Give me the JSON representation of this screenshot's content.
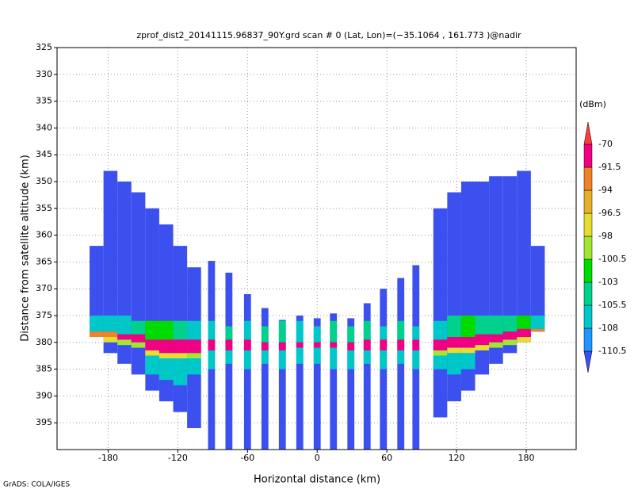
{
  "chart_data": {
    "type": "heatmap",
    "title": "zprof_dist2_20141115.96837_90Y.grd  scan # 0  (Lat, Lon)=(−35.1064 , 161.773 )@nadir",
    "x_label": "Horizontal distance (km)",
    "y_label": "Distance from satellite altitude (km)",
    "footer": "GrADS: COLA/IGES",
    "xlim": [
      -224,
      223
    ],
    "ylim": [
      325,
      400
    ],
    "y_inverted": true,
    "xticks": [
      -180,
      -120,
      -60,
      0,
      60,
      120,
      180
    ],
    "yticks": [
      325,
      330,
      335,
      340,
      345,
      350,
      355,
      360,
      365,
      370,
      375,
      380,
      385,
      390,
      395
    ],
    "grid": true,
    "colorbar": {
      "unit": "(dBm)",
      "levels": [
        -110.5,
        -108,
        -105.5,
        -103,
        -100.5,
        -98,
        -96.5,
        -94,
        -91.5,
        -70
      ],
      "colors": [
        "#3c50f0",
        "#1e96ff",
        "#00c8c8",
        "#00d28c",
        "#00dc00",
        "#a0e632",
        "#e6dc32",
        "#e6af2d",
        "#f08228",
        "#f00082",
        "#fa3c3c"
      ]
    },
    "columns": [
      {
        "x": -190,
        "width": 12,
        "top": 362,
        "bottom": 379,
        "base": -112,
        "cells": [
          [
            375,
            378,
            -108
          ],
          [
            378,
            379,
            -93
          ]
        ]
      },
      {
        "x": -178,
        "width": 12,
        "top": 348,
        "bottom": 382,
        "base": -112,
        "cells": [
          [
            375,
            378,
            -106
          ],
          [
            378,
            379,
            -92
          ],
          [
            379,
            380,
            -98
          ]
        ]
      },
      {
        "x": -166,
        "width": 12,
        "top": 350,
        "bottom": 384,
        "base": -112,
        "cells": [
          [
            375,
            378.5,
            -106
          ],
          [
            378.5,
            379.5,
            -88
          ],
          [
            379.5,
            380.5,
            -99
          ]
        ]
      },
      {
        "x": -154,
        "width": 12,
        "top": 352,
        "bottom": 386,
        "base": -112,
        "cells": [
          [
            376,
            378.5,
            -104
          ],
          [
            378.5,
            380,
            -88
          ],
          [
            380,
            381,
            -100
          ]
        ]
      },
      {
        "x": -142,
        "width": 12,
        "top": 355,
        "bottom": 389,
        "base": -112,
        "cells": [
          [
            376,
            379.5,
            -101
          ],
          [
            379.5,
            381.5,
            -80
          ],
          [
            381.5,
            382.5,
            -98
          ],
          [
            382.5,
            386,
            -107
          ]
        ]
      },
      {
        "x": -130,
        "width": 12,
        "top": 358,
        "bottom": 391,
        "base": -112,
        "cells": [
          [
            376,
            379.5,
            -103
          ],
          [
            379.5,
            382,
            -80
          ],
          [
            382,
            383,
            -97
          ],
          [
            383,
            387,
            -106
          ]
        ]
      },
      {
        "x": -118,
        "width": 12,
        "top": 362,
        "bottom": 393,
        "base": -112,
        "cells": [
          [
            376,
            379.5,
            -104
          ],
          [
            379.5,
            382,
            -80
          ],
          [
            382,
            383,
            -98
          ],
          [
            383,
            388,
            -106
          ]
        ]
      },
      {
        "x": -106,
        "width": 12,
        "top": 366,
        "bottom": 396,
        "base": -112,
        "cells": [
          [
            376,
            379.5,
            -106
          ],
          [
            379.5,
            382,
            -80
          ],
          [
            382,
            383,
            -99
          ],
          [
            383,
            386,
            -107
          ]
        ]
      },
      {
        "x": -91,
        "width": 6,
        "top": 364.8,
        "bottom": 400,
        "base": -112,
        "cells": [
          [
            376,
            379.5,
            -106
          ],
          [
            379.5,
            381.5,
            -82
          ],
          [
            381.5,
            385,
            -107
          ]
        ]
      },
      {
        "x": -76,
        "width": 6,
        "top": 367,
        "bottom": 400,
        "base": -112,
        "cells": [
          [
            377,
            379.5,
            -105
          ],
          [
            379.5,
            381.5,
            -82
          ],
          [
            381.5,
            384,
            -106
          ]
        ]
      },
      {
        "x": -60,
        "width": 6,
        "top": 371,
        "bottom": 400,
        "base": -112,
        "cells": [
          [
            376,
            379.5,
            -106
          ],
          [
            379.5,
            381.5,
            -84
          ],
          [
            381.5,
            385,
            -107
          ]
        ]
      },
      {
        "x": -45,
        "width": 6,
        "top": 373.6,
        "bottom": 400,
        "base": -112,
        "cells": [
          [
            377,
            380,
            -105
          ],
          [
            380,
            381.5,
            -84
          ],
          [
            381.5,
            384,
            -106
          ]
        ]
      },
      {
        "x": -30,
        "width": 6,
        "top": 375.8,
        "bottom": 400,
        "base": -112,
        "cells": [
          [
            376,
            380,
            -104
          ],
          [
            380,
            381.5,
            -86
          ],
          [
            381.5,
            385,
            -106
          ]
        ]
      },
      {
        "x": -15,
        "width": 6,
        "top": 375,
        "bottom": 400,
        "base": -112,
        "cells": [
          [
            376,
            380,
            -106
          ],
          [
            380,
            381,
            -86
          ],
          [
            381,
            384,
            -107
          ]
        ]
      },
      {
        "x": 0,
        "width": 6,
        "top": 375.5,
        "bottom": 400,
        "base": -112,
        "cells": [
          [
            377,
            380,
            -106
          ],
          [
            380,
            381,
            -86
          ],
          [
            381,
            384,
            -107
          ]
        ]
      },
      {
        "x": 14,
        "width": 6,
        "top": 374.6,
        "bottom": 400,
        "base": -112,
        "cells": [
          [
            376,
            380,
            -105
          ],
          [
            380,
            381,
            -86
          ],
          [
            381,
            385,
            -106
          ]
        ]
      },
      {
        "x": 29,
        "width": 6,
        "top": 375.5,
        "bottom": 400,
        "base": -112,
        "cells": [
          [
            377,
            380,
            -104
          ],
          [
            380,
            381.5,
            -84
          ],
          [
            381.5,
            385,
            -106
          ]
        ]
      },
      {
        "x": 43,
        "width": 6,
        "top": 372.7,
        "bottom": 400,
        "base": -112,
        "cells": [
          [
            376,
            379.5,
            -105
          ],
          [
            379.5,
            381.5,
            -84
          ],
          [
            381.5,
            384,
            -107
          ]
        ]
      },
      {
        "x": 57,
        "width": 6,
        "top": 370,
        "bottom": 400,
        "base": -112,
        "cells": [
          [
            377,
            379.5,
            -106
          ],
          [
            379.5,
            381.5,
            -82
          ],
          [
            381.5,
            385,
            -106
          ]
        ]
      },
      {
        "x": 72,
        "width": 6,
        "top": 368,
        "bottom": 400,
        "base": -112,
        "cells": [
          [
            376,
            379.5,
            -105
          ],
          [
            379.5,
            381.5,
            -82
          ],
          [
            381.5,
            384,
            -107
          ]
        ]
      },
      {
        "x": 85,
        "width": 6,
        "top": 365.6,
        "bottom": 400,
        "base": -112,
        "cells": [
          [
            377,
            379.5,
            -106
          ],
          [
            379.5,
            381.5,
            -82
          ],
          [
            381.5,
            385,
            -106
          ]
        ]
      },
      {
        "x": 106,
        "width": 12,
        "top": 355,
        "bottom": 394,
        "base": -112,
        "cells": [
          [
            376,
            379.5,
            -106
          ],
          [
            379.5,
            381.5,
            -80
          ],
          [
            381.5,
            382.5,
            -99
          ],
          [
            382.5,
            385,
            -106
          ]
        ]
      },
      {
        "x": 118,
        "width": 12,
        "top": 352,
        "bottom": 391,
        "base": -112,
        "cells": [
          [
            375,
            379,
            -104
          ],
          [
            379,
            381,
            -80
          ],
          [
            381,
            382,
            -98
          ],
          [
            382,
            386,
            -106
          ]
        ]
      },
      {
        "x": 130,
        "width": 12,
        "top": 350,
        "bottom": 389,
        "base": -112,
        "cells": [
          [
            375,
            379,
            -103
          ],
          [
            379,
            381,
            -80
          ],
          [
            381,
            382,
            -97
          ],
          [
            382,
            385,
            -107
          ]
        ]
      },
      {
        "x": 142,
        "width": 12,
        "top": 350,
        "bottom": 386,
        "base": -112,
        "cells": [
          [
            375,
            378.5,
            -104
          ],
          [
            378.5,
            380.5,
            -80
          ],
          [
            380.5,
            381.5,
            -98
          ]
        ]
      },
      {
        "x": 154,
        "width": 12,
        "top": 349,
        "bottom": 384,
        "base": -112,
        "cells": [
          [
            375,
            378.5,
            -105
          ],
          [
            378.5,
            380,
            -80
          ],
          [
            380,
            381,
            -99
          ]
        ]
      },
      {
        "x": 166,
        "width": 12,
        "top": 349,
        "bottom": 382,
        "base": -112,
        "cells": [
          [
            375,
            378,
            -104
          ],
          [
            378,
            379.5,
            -80
          ],
          [
            379.5,
            380.5,
            -100
          ]
        ]
      },
      {
        "x": 178,
        "width": 12,
        "top": 348,
        "bottom": 380,
        "base": -112,
        "cells": [
          [
            375,
            377.5,
            -101
          ],
          [
            377.5,
            379,
            -88
          ],
          [
            379,
            380,
            -98
          ]
        ]
      },
      {
        "x": 190,
        "width": 12,
        "top": 362,
        "bottom": 378,
        "base": -112,
        "cells": [
          [
            375,
            377.5,
            -106
          ],
          [
            377.5,
            378,
            -93
          ]
        ]
      }
    ]
  }
}
